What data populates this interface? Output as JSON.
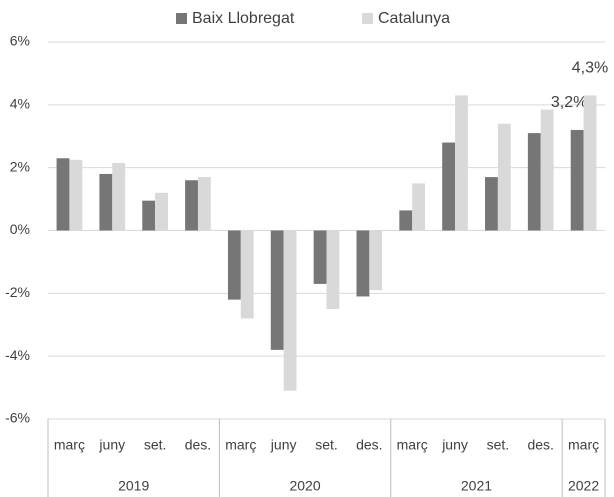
{
  "chart_data": {
    "type": "bar",
    "category_groups": [
      {
        "label": "2019",
        "categories": [
          "març",
          "juny",
          "set.",
          "des."
        ]
      },
      {
        "label": "2020",
        "categories": [
          "març",
          "juny",
          "set.",
          "des."
        ]
      },
      {
        "label": "2021",
        "categories": [
          "març",
          "juny",
          "set.",
          "des."
        ]
      },
      {
        "label": "2022",
        "categories": [
          "març"
        ]
      }
    ],
    "series": [
      {
        "name": "Baix Llobregat",
        "color": "#767676",
        "values": [
          2.3,
          1.8,
          0.95,
          1.6,
          -2.2,
          -3.8,
          -1.7,
          -2.1,
          0.64,
          2.8,
          1.7,
          3.1,
          3.2
        ],
        "value_labels": [
          null,
          null,
          null,
          null,
          null,
          null,
          null,
          null,
          null,
          null,
          null,
          null,
          "3,2%"
        ]
      },
      {
        "name": "Catalunya",
        "color": "#d9d9d9",
        "values": [
          2.25,
          2.15,
          1.2,
          1.7,
          -2.8,
          -5.1,
          -2.5,
          -1.9,
          1.5,
          4.3,
          3.4,
          3.85,
          4.3
        ],
        "value_labels": [
          null,
          null,
          null,
          null,
          null,
          null,
          null,
          null,
          null,
          null,
          null,
          null,
          "4,3%"
        ]
      }
    ],
    "ylim": [
      -6,
      6
    ],
    "yticks": [
      {
        "value": -6,
        "label": "-6%"
      },
      {
        "value": -4,
        "label": "-4%"
      },
      {
        "value": -2,
        "label": "-2%"
      },
      {
        "value": 0,
        "label": "0%"
      },
      {
        "value": 2,
        "label": "2%"
      },
      {
        "value": 4,
        "label": "4%"
      },
      {
        "value": 6,
        "label": "6%"
      }
    ],
    "grid": true,
    "legend": "top"
  }
}
